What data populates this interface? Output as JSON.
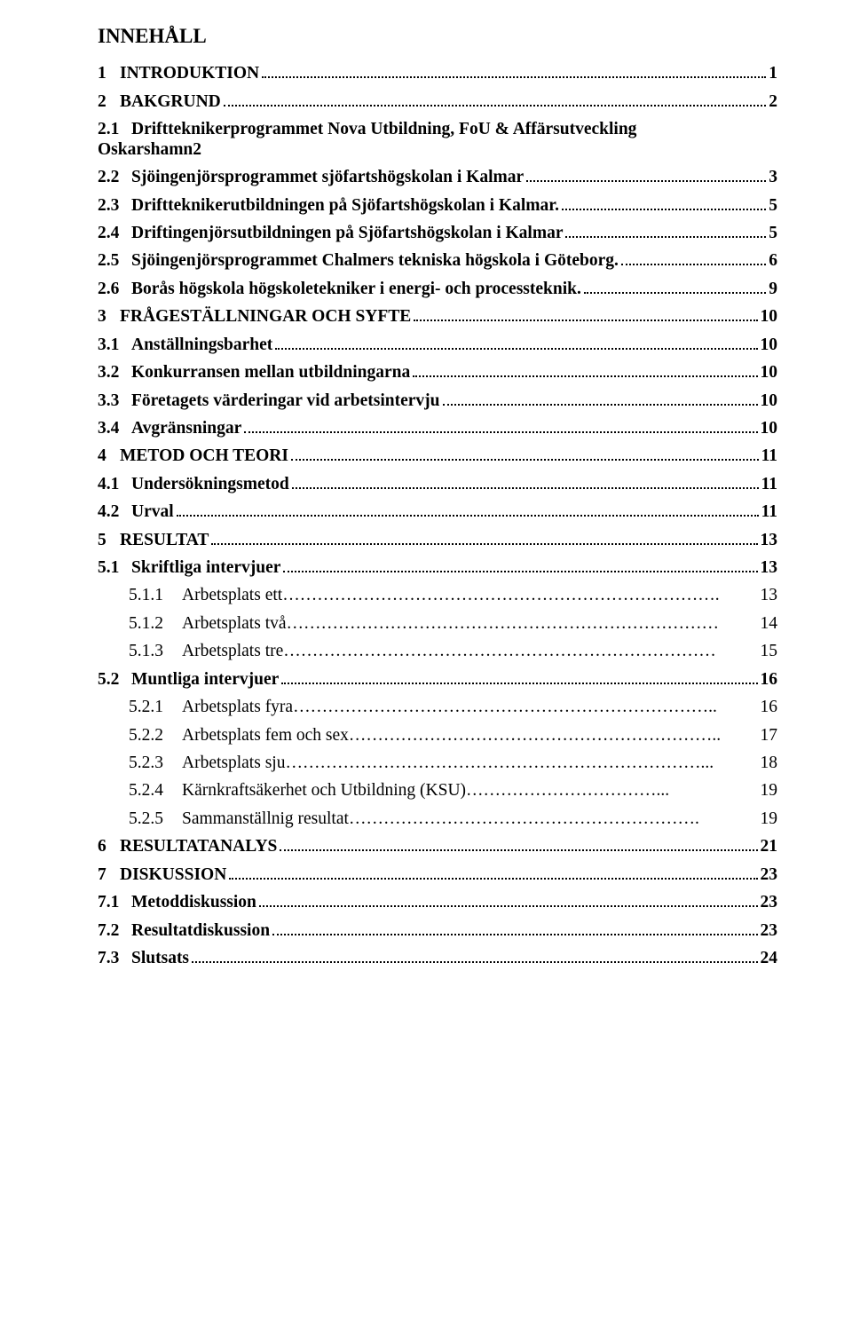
{
  "title": "INNEHÅLL",
  "entries": [
    {
      "level": 1,
      "bold": true,
      "num": "1",
      "label": "INTRODUKTION",
      "leader": "dots",
      "page": "1"
    },
    {
      "level": 1,
      "bold": true,
      "num": "2",
      "label": "BAKGRUND",
      "leader": "dots",
      "page": "2"
    },
    {
      "level": 2,
      "bold": true,
      "num": "2.1",
      "label_line1": "Driftteknikerprogrammet Nova Utbildning, FoU & Affärsutveckling",
      "label_line2": "Oskarshamn",
      "leader": "dots",
      "page": "2",
      "wrap": true
    },
    {
      "level": 2,
      "bold": true,
      "num": "2.2",
      "label": "Sjöingenjörsprogrammet sjöfartshögskolan i Kalmar",
      "leader": "dots",
      "page": "3"
    },
    {
      "level": 2,
      "bold": true,
      "num": "2.3",
      "label": "Driftteknikerutbildningen på Sjöfartshögskolan i Kalmar.",
      "leader": "dots",
      "page": "5"
    },
    {
      "level": 2,
      "bold": true,
      "num": "2.4",
      "label": "Driftingenjörsutbildningen på Sjöfartshögskolan i Kalmar",
      "leader": "dots",
      "page": "5"
    },
    {
      "level": 2,
      "bold": true,
      "num": "2.5",
      "label": "Sjöingenjörsprogrammet Chalmers tekniska högskola i Göteborg.",
      "leader": "dots",
      "page": "6"
    },
    {
      "level": 2,
      "bold": true,
      "num": "2.6",
      "label": "Borås högskola högskoletekniker i energi- och processteknik.",
      "leader": "dots",
      "page": "9"
    },
    {
      "level": 1,
      "bold": true,
      "num": "3",
      "label": "FRÅGESTÄLLNINGAR OCH SYFTE",
      "leader": "dots",
      "page": "10"
    },
    {
      "level": 2,
      "bold": true,
      "num": "3.1",
      "label": "Anställningsbarhet",
      "leader": "dots",
      "page": "10"
    },
    {
      "level": 2,
      "bold": true,
      "num": "3.2",
      "label": "Konkurransen mellan utbildningarna",
      "leader": "dots",
      "page": "10"
    },
    {
      "level": 2,
      "bold": true,
      "num": "3.3",
      "label": "Företagets värderingar vid arbetsintervju",
      "leader": "dots",
      "page": "10"
    },
    {
      "level": 2,
      "bold": true,
      "num": "3.4",
      "label": "Avgränsningar",
      "leader": "dots",
      "page": "10"
    },
    {
      "level": 1,
      "bold": true,
      "num": "4",
      "label": "METOD OCH TEORI",
      "leader": "dots",
      "page": "11"
    },
    {
      "level": 2,
      "bold": true,
      "num": "4.1",
      "label": "Undersökningsmetod",
      "leader": "dots",
      "page": "11"
    },
    {
      "level": 2,
      "bold": true,
      "num": "4.2",
      "label": "Urval",
      "leader": "dots",
      "page": "11"
    },
    {
      "level": 1,
      "bold": true,
      "num": "5",
      "label": "RESULTAT",
      "leader": "dots",
      "page": "13"
    },
    {
      "level": 2,
      "bold": true,
      "num": "5.1",
      "label": "Skriftliga intervjuer",
      "leader": "dots",
      "page": "13"
    },
    {
      "level": 3,
      "bold": false,
      "num": "5.1.1",
      "label": "Arbetsplats ett",
      "leader": "trail",
      "trail_text": "………………………………………………………………….",
      "page": "13"
    },
    {
      "level": 3,
      "bold": false,
      "num": "5.1.2",
      "label": "Arbetsplats två",
      "leader": "trail",
      "trail_text": "…………………………………………………………………",
      "page": "14"
    },
    {
      "level": 3,
      "bold": false,
      "num": "5.1.3",
      "label": "Arbetsplats tre",
      "leader": "trail",
      "trail_text": "…………………………………………………………………",
      "page": "15"
    },
    {
      "level": 2,
      "bold": true,
      "num": "5.2",
      "label": "Muntliga intervjuer",
      "leader": "dots",
      "page": "16"
    },
    {
      "level": 3,
      "bold": false,
      "num": "5.2.1",
      "label": "Arbetsplats fyra",
      "leader": "trail",
      "trail_text": "………………………………………………………………..",
      "page": "16"
    },
    {
      "level": 3,
      "bold": false,
      "num": "5.2.2",
      "label": "Arbetsplats fem och sex",
      "leader": "trail",
      "trail_text": "………………………………………………………..",
      "page": "17"
    },
    {
      "level": 3,
      "bold": false,
      "num": "5.2.3",
      "label": "Arbetsplats sju",
      "leader": "trail",
      "trail_text": "………………………………………………………………...",
      "page": "18"
    },
    {
      "level": 3,
      "bold": false,
      "num": "5.2.4",
      "label": "Kärnkraftsäkerhet och Utbildning (KSU)",
      "leader": "trail",
      "trail_text": "……………………………...",
      "page": "19"
    },
    {
      "level": 3,
      "bold": false,
      "num": "5.2.5",
      "label": "Sammanställnig resultat",
      "leader": "trail",
      "trail_text": "…………………………………………………….",
      "page": "19"
    },
    {
      "level": 1,
      "bold": true,
      "num": "6",
      "label": "RESULTATANALYS",
      "leader": "dots",
      "page": "21"
    },
    {
      "level": 1,
      "bold": true,
      "num": "7",
      "label": "DISKUSSION",
      "leader": "dots",
      "page": "23"
    },
    {
      "level": 2,
      "bold": true,
      "num": "7.1",
      "label": "Metoddiskussion",
      "leader": "dots",
      "page": "23"
    },
    {
      "level": 2,
      "bold": true,
      "num": "7.2",
      "label": "Resultatdiskussion",
      "leader": "dots",
      "page": "23"
    },
    {
      "level": 2,
      "bold": true,
      "num": "7.3",
      "label": "Slutsats",
      "leader": "dots",
      "page": "24"
    }
  ],
  "spacing": {
    "num_label_gap_lvl1": "   ",
    "num_label_gap_lvl2": "  ",
    "num_label_gap_lvl3": "  "
  }
}
